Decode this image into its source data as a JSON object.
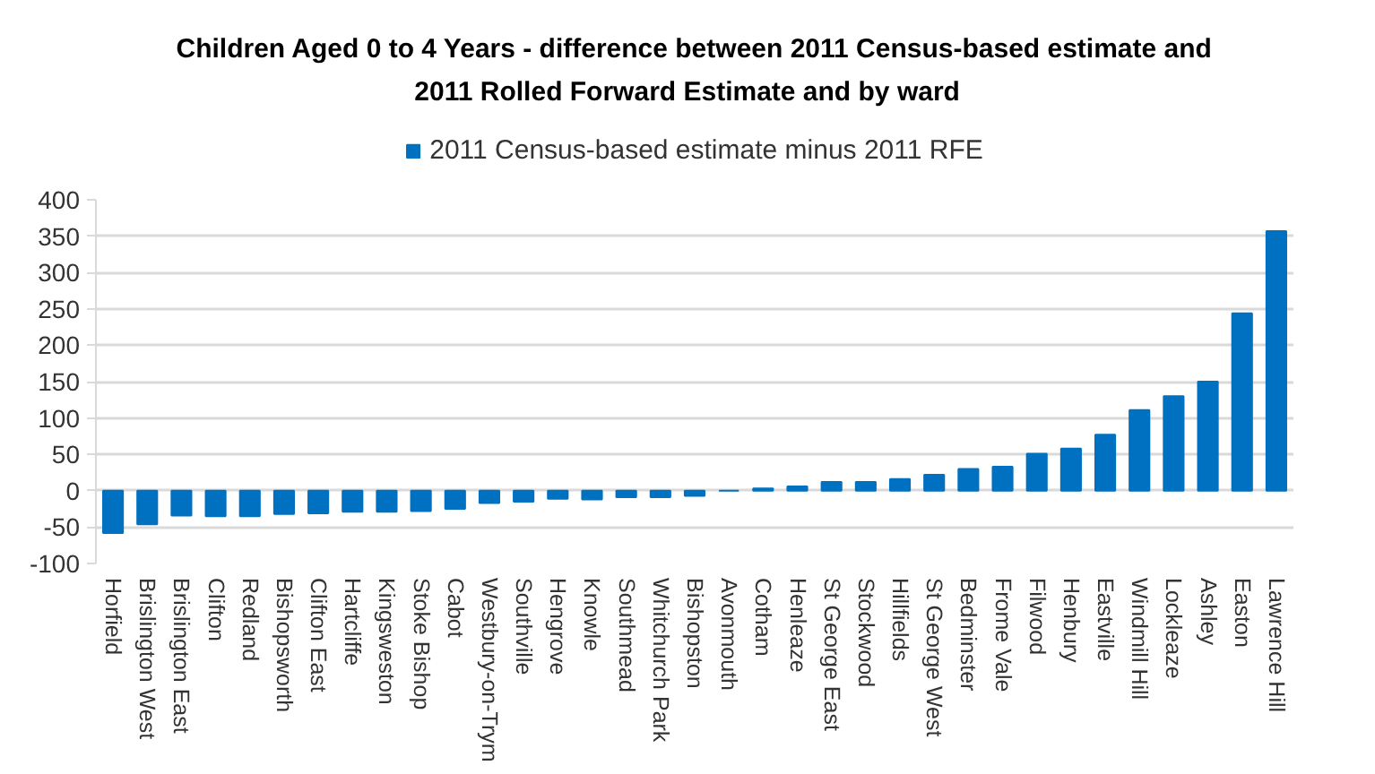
{
  "chart_data": {
    "type": "bar",
    "title": "Children Aged 0 to 4 Years - difference between 2011 Census-based estimate and\n2011 Rolled Forward Estimate and   by ward",
    "categories": [
      "Horfield",
      "Brislington West",
      "Brislington East",
      "Clifton",
      "Redland",
      "Bishopsworth",
      "Clifton East",
      "Hartcliffe",
      "Kingsweston",
      "Stoke Bishop",
      "Cabot",
      "Westbury-on-Trym",
      "Southville",
      "Hengrove",
      "Knowle",
      "Southmead",
      "Whitchurch Park",
      "Bishopston",
      "Avonmouth",
      "Cotham",
      "Henleaze",
      "St George East",
      "Stockwood",
      "Hillfields",
      "St George West",
      "Bedminster",
      "Frome Vale",
      "Filwood",
      "Henbury",
      "Eastville",
      "Windmill Hill",
      "Lockleaze",
      "Ashley",
      "Easton",
      "Lawrence Hill"
    ],
    "series": [
      {
        "name": "2011 Census-based estimate minus 2011 RFE",
        "color": "#0070c0",
        "values": [
          -58,
          -46,
          -34,
          -35,
          -35,
          -32,
          -31,
          -29,
          -29,
          -28,
          -25,
          -17,
          -15,
          -11,
          -12,
          -9,
          -9,
          -7,
          0,
          3,
          6,
          12,
          12,
          16,
          22,
          30,
          33,
          51,
          58,
          77,
          111,
          130,
          150,
          244,
          357
        ]
      }
    ],
    "ylim": [
      -100,
      400
    ],
    "yticks": [
      -100,
      -50,
      0,
      50,
      100,
      150,
      200,
      250,
      300,
      350,
      400
    ],
    "grid": "y",
    "legend": "top"
  }
}
